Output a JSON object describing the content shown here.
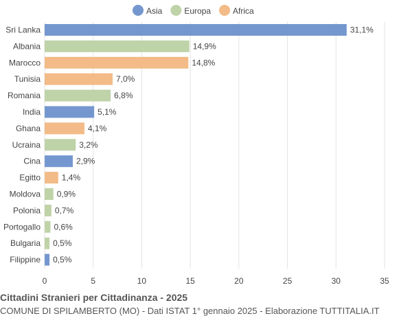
{
  "chart_data": {
    "type": "bar",
    "orientation": "horizontal",
    "title": "Cittadini Stranieri per Cittadinanza - 2025",
    "subtitle": "COMUNE DI SPILAMBERTO (MO) - Dati ISTAT 1° gennaio 2025 - Elaborazione TUTTITALIA.IT",
    "legend": [
      {
        "name": "Asia",
        "color": "#7597cf"
      },
      {
        "name": "Europa",
        "color": "#bfd3a9"
      },
      {
        "name": "Africa",
        "color": "#f2bb87"
      }
    ],
    "legend_placement": "top",
    "categories": [
      "Sri Lanka",
      "Albania",
      "Marocco",
      "Tunisia",
      "Romania",
      "India",
      "Ghana",
      "Ucraina",
      "Cina",
      "Egitto",
      "Moldova",
      "Polonia",
      "Portogallo",
      "Bulgaria",
      "Filippine"
    ],
    "groups": [
      "Asia",
      "Europa",
      "Africa",
      "Africa",
      "Europa",
      "Asia",
      "Africa",
      "Europa",
      "Asia",
      "Africa",
      "Europa",
      "Europa",
      "Europa",
      "Europa",
      "Asia"
    ],
    "values": [
      31.1,
      14.9,
      14.8,
      7.0,
      6.8,
      5.1,
      4.1,
      3.2,
      2.9,
      1.4,
      0.9,
      0.7,
      0.6,
      0.5,
      0.5
    ],
    "labels": [
      "31,1%",
      "14,9%",
      "14,8%",
      "7,0%",
      "6,8%",
      "5,1%",
      "4,1%",
      "3,2%",
      "2,9%",
      "1,4%",
      "0,9%",
      "0,7%",
      "0,6%",
      "0,5%",
      "0,5%"
    ],
    "xlim": [
      0,
      35
    ],
    "xticks": [
      "0",
      "5",
      "10",
      "15",
      "20",
      "25",
      "30",
      "35"
    ],
    "grid": true
  }
}
